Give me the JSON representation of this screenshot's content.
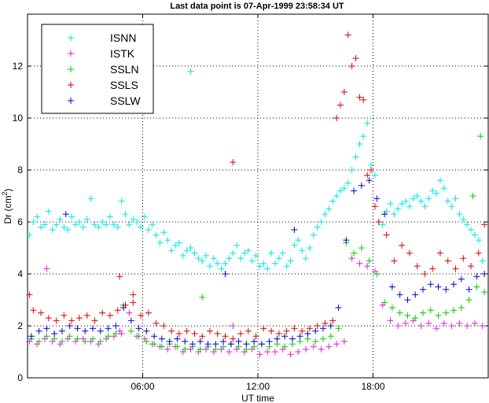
{
  "chart_data": {
    "type": "scatter",
    "title": "Last data point is 07-Apr-1999 23:58:34 UT",
    "xlabel": "UT time",
    "ylabel": "Dr (cm",
    "ylabel_sup": "2",
    "ylabel_end": ")",
    "xlim": [
      0,
      24
    ],
    "ylim": [
      0,
      14
    ],
    "x_ticks": [
      6,
      12,
      18
    ],
    "x_tick_labels": [
      "06:00",
      "12:00",
      "18:00"
    ],
    "y_ticks": [
      0,
      2,
      4,
      6,
      8,
      10,
      12
    ],
    "y_tick_labels": [
      "0",
      "2",
      "4",
      "6",
      "8",
      "10",
      "12"
    ],
    "grid": true,
    "legend_position": "top-left",
    "marker": "+",
    "series": [
      {
        "name": "ISNN",
        "color": "#00e5e5",
        "x": [
          0.1,
          0.3,
          0.5,
          0.7,
          0.9,
          1.1,
          1.3,
          1.5,
          1.7,
          1.9,
          2.1,
          2.3,
          2.5,
          2.7,
          2.9,
          3.1,
          3.3,
          3.5,
          3.7,
          3.9,
          4.1,
          4.3,
          4.5,
          4.7,
          4.9,
          5.1,
          5.3,
          5.5,
          5.7,
          5.9,
          6.1,
          6.3,
          6.5,
          6.7,
          6.9,
          7.1,
          7.3,
          7.5,
          7.7,
          7.9,
          8.1,
          8.3,
          8.5,
          8.7,
          8.9,
          9.1,
          9.3,
          9.5,
          9.7,
          9.9,
          10.1,
          10.3,
          10.5,
          10.7,
          10.9,
          11.1,
          11.3,
          11.5,
          11.7,
          11.9,
          12.1,
          12.3,
          12.5,
          12.7,
          12.9,
          13.1,
          13.3,
          13.5,
          13.7,
          13.9,
          14.1,
          14.3,
          14.5,
          14.7,
          14.9,
          15.1,
          15.3,
          15.5,
          15.7,
          15.9,
          16.1,
          16.3,
          16.5,
          16.7,
          16.9,
          17.1,
          17.3,
          17.5,
          17.7,
          17.9,
          18.1,
          18.3,
          18.5,
          18.7,
          18.9,
          19.1,
          19.3,
          19.5,
          19.7,
          19.9,
          20.1,
          20.3,
          20.5,
          20.7,
          20.9,
          21.1,
          21.3,
          21.5,
          21.7,
          21.9,
          22.1,
          22.3,
          22.5,
          22.7,
          22.9,
          23.1,
          23.3,
          23.5,
          23.7,
          8.5
        ],
        "y": [
          5.5,
          6.0,
          6.2,
          5.8,
          5.9,
          6.4,
          5.7,
          5.9,
          6.1,
          5.8,
          5.7,
          6.2,
          5.9,
          6.0,
          5.8,
          6.1,
          6.9,
          5.9,
          5.8,
          6.0,
          5.9,
          6.2,
          5.9,
          5.8,
          6.8,
          6.3,
          5.9,
          6.1,
          6.0,
          5.8,
          6.2,
          5.7,
          5.9,
          5.5,
          5.2,
          5.6,
          5.3,
          4.9,
          5.1,
          5.2,
          4.7,
          4.9,
          5.0,
          4.8,
          4.6,
          4.5,
          4.7,
          4.3,
          4.6,
          4.4,
          4.2,
          4.4,
          4.6,
          4.8,
          5.1,
          4.6,
          4.8,
          4.9,
          4.5,
          4.7,
          4.3,
          4.4,
          4.2,
          4.8,
          4.4,
          4.6,
          4.8,
          4.3,
          4.5,
          5.1,
          5.3,
          4.9,
          4.6,
          5.0,
          5.5,
          5.8,
          6.0,
          6.3,
          6.5,
          6.8,
          7.0,
          7.2,
          7.3,
          7.5,
          8.0,
          8.5,
          9.0,
          9.3,
          9.8,
          8.2,
          7.8,
          6.0,
          5.9,
          6.4,
          6.7,
          6.3,
          6.5,
          6.7,
          6.8,
          6.6,
          6.9,
          7.0,
          6.8,
          6.6,
          6.9,
          7.2,
          7.1,
          7.6,
          7.3,
          6.8,
          6.6,
          6.9,
          6.3,
          6.1,
          5.9,
          5.7,
          5.5,
          5.3,
          4.5,
          11.8
        ]
      },
      {
        "name": "ISTK",
        "color": "#e020e0",
        "x": [
          0.1,
          0.5,
          0.9,
          1.3,
          1.7,
          2.1,
          2.5,
          2.9,
          3.3,
          3.7,
          4.1,
          4.5,
          4.9,
          5.3,
          5.7,
          6.1,
          6.5,
          6.9,
          7.3,
          7.7,
          8.1,
          8.5,
          8.9,
          9.3,
          9.7,
          10.1,
          10.5,
          10.9,
          11.3,
          11.7,
          12.1,
          12.5,
          12.9,
          13.3,
          13.7,
          14.1,
          14.5,
          14.9,
          15.3,
          15.7,
          16.1,
          16.5,
          16.9,
          17.3,
          17.7,
          18.1,
          18.5,
          18.9,
          19.3,
          19.7,
          20.1,
          20.5,
          20.9,
          21.3,
          21.7,
          22.1,
          22.5,
          22.9,
          23.3,
          23.7,
          1.0,
          4.8,
          10.7
        ],
        "y": [
          1.4,
          1.3,
          1.5,
          1.4,
          1.3,
          1.5,
          1.4,
          1.5,
          1.4,
          1.3,
          1.5,
          1.6,
          1.7,
          2.5,
          1.6,
          1.5,
          1.3,
          1.2,
          1.1,
          1.2,
          1.0,
          1.1,
          1.0,
          1.1,
          1.0,
          1.1,
          1.0,
          1.1,
          1.0,
          1.1,
          0.9,
          1.0,
          1.0,
          1.1,
          0.9,
          1.0,
          1.1,
          1.2,
          1.1,
          1.2,
          1.3,
          1.4,
          4.6,
          4.4,
          4.3,
          4.1,
          2.8,
          2.2,
          2.0,
          2.1,
          2.2,
          2.0,
          2.1,
          1.9,
          2.1,
          2.0,
          2.1,
          2.0,
          2.1,
          2.0,
          4.2,
          1.8,
          2.0
        ]
      },
      {
        "name": "SSLN",
        "color": "#00cc00",
        "x": [
          0.2,
          0.6,
          1.0,
          1.4,
          1.8,
          2.2,
          2.6,
          3.0,
          3.4,
          3.8,
          4.2,
          4.6,
          5.0,
          5.4,
          5.8,
          6.2,
          6.6,
          7.0,
          7.4,
          7.8,
          8.2,
          8.6,
          9.0,
          9.4,
          9.8,
          10.2,
          10.6,
          11.0,
          11.4,
          11.8,
          12.2,
          12.6,
          13.0,
          13.4,
          13.8,
          14.2,
          14.6,
          15.0,
          15.4,
          15.8,
          16.2,
          16.6,
          17.0,
          17.4,
          17.8,
          18.2,
          18.6,
          19.0,
          19.4,
          19.8,
          20.2,
          20.6,
          21.0,
          21.4,
          21.8,
          22.2,
          22.6,
          23.0,
          23.4,
          23.8,
          9.1,
          23.6,
          23.2
        ],
        "y": [
          1.5,
          1.4,
          1.6,
          1.5,
          1.4,
          1.6,
          1.5,
          1.4,
          1.5,
          1.4,
          1.6,
          1.7,
          2.8,
          1.8,
          1.6,
          1.4,
          1.3,
          1.2,
          1.3,
          1.2,
          1.1,
          1.2,
          1.1,
          1.2,
          1.1,
          1.2,
          1.3,
          1.2,
          1.1,
          1.2,
          1.3,
          1.2,
          1.3,
          1.2,
          1.3,
          1.4,
          1.5,
          1.4,
          1.5,
          1.6,
          1.9,
          5.2,
          4.8,
          5.0,
          4.5,
          4.0,
          2.9,
          2.7,
          2.5,
          2.4,
          2.3,
          2.5,
          2.6,
          2.4,
          2.5,
          2.6,
          2.7,
          3.0,
          3.5,
          3.3,
          3.1,
          9.3,
          7.0
        ]
      },
      {
        "name": "SSLS",
        "color": "#dd0000",
        "x": [
          0.1,
          0.3,
          0.7,
          1.1,
          1.5,
          1.9,
          2.3,
          2.7,
          3.1,
          3.5,
          3.9,
          4.3,
          4.7,
          5.1,
          5.5,
          5.9,
          6.3,
          6.7,
          7.1,
          7.5,
          7.9,
          8.3,
          8.7,
          9.1,
          9.5,
          9.9,
          10.3,
          10.7,
          11.1,
          11.5,
          11.9,
          12.3,
          12.7,
          13.1,
          13.5,
          13.9,
          14.3,
          14.7,
          15.1,
          15.5,
          15.9,
          16.1,
          16.3,
          16.5,
          16.7,
          16.9,
          17.1,
          17.3,
          17.5,
          17.7,
          17.9,
          18.1,
          18.3,
          18.7,
          19.1,
          19.5,
          19.9,
          20.3,
          20.7,
          21.1,
          21.5,
          21.9,
          22.3,
          22.7,
          23.1,
          23.5,
          23.8,
          10.7,
          4.8,
          5.5
        ],
        "y": [
          3.2,
          2.6,
          2.5,
          2.3,
          2.2,
          2.4,
          2.2,
          2.3,
          2.4,
          2.2,
          2.5,
          2.4,
          2.6,
          2.8,
          2.9,
          2.4,
          2.5,
          2.1,
          2.0,
          1.8,
          1.7,
          1.8,
          1.7,
          1.6,
          1.8,
          1.7,
          1.6,
          1.5,
          1.7,
          1.8,
          1.6,
          1.9,
          1.8,
          1.7,
          1.8,
          1.9,
          1.8,
          1.9,
          2.0,
          2.1,
          2.2,
          10.0,
          10.5,
          11.0,
          13.2,
          12.0,
          12.3,
          10.8,
          10.7,
          7.8,
          8.0,
          6.6,
          6.0,
          5.5,
          4.5,
          5.1,
          4.8,
          4.3,
          4.0,
          4.2,
          4.8,
          4.5,
          4.2,
          4.6,
          4.3,
          4.8,
          5.9,
          8.3,
          3.9,
          3.2
        ]
      },
      {
        "name": "SSLW",
        "color": "#0000cc",
        "x": [
          0.2,
          0.6,
          1.0,
          1.4,
          1.8,
          2.2,
          2.6,
          3.0,
          3.4,
          3.8,
          4.2,
          4.6,
          5.0,
          5.4,
          5.8,
          6.2,
          6.6,
          7.0,
          7.4,
          7.8,
          8.2,
          8.6,
          9.0,
          9.4,
          9.8,
          10.2,
          10.6,
          11.0,
          11.4,
          11.8,
          12.2,
          12.6,
          13.0,
          13.4,
          13.8,
          14.2,
          14.6,
          15.0,
          15.4,
          15.8,
          16.2,
          16.6,
          17.0,
          17.4,
          17.8,
          18.2,
          18.6,
          19.0,
          19.4,
          19.8,
          20.2,
          20.6,
          21.0,
          21.4,
          21.8,
          22.2,
          22.6,
          23.0,
          23.4,
          23.8,
          2.0,
          10.3,
          13.9
        ],
        "y": [
          1.6,
          1.8,
          1.9,
          1.7,
          1.8,
          2.0,
          1.9,
          1.8,
          1.9,
          1.8,
          1.9,
          2.0,
          2.7,
          2.2,
          1.9,
          1.8,
          1.6,
          1.5,
          1.4,
          1.5,
          1.4,
          1.3,
          1.4,
          1.3,
          1.3,
          1.4,
          1.3,
          1.4,
          1.3,
          1.4,
          1.3,
          1.4,
          1.5,
          1.6,
          1.5,
          1.6,
          1.7,
          1.8,
          1.9,
          2.0,
          2.7,
          5.3,
          7.2,
          7.4,
          7.6,
          6.9,
          6.3,
          3.5,
          3.2,
          3.0,
          3.2,
          3.4,
          3.6,
          3.5,
          3.4,
          3.6,
          3.8,
          3.4,
          3.9,
          4.0,
          6.3,
          4.0,
          5.7
        ]
      }
    ]
  }
}
